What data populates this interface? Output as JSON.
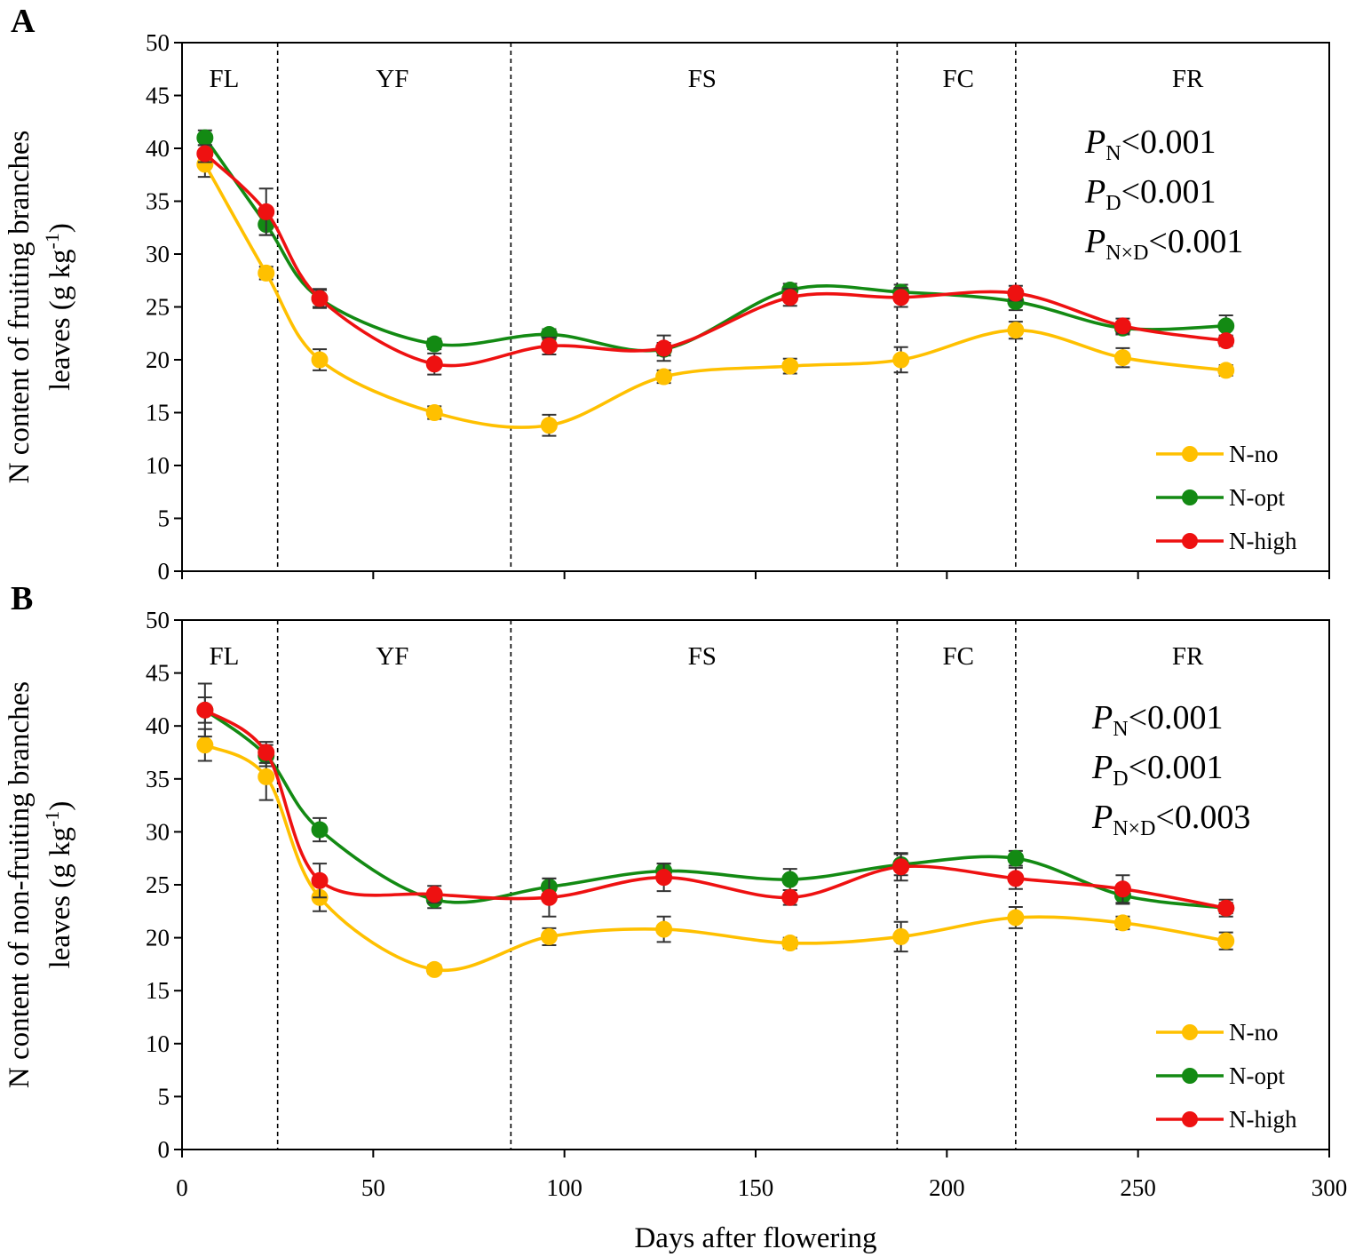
{
  "chart_data": [
    {
      "type": "line",
      "panel": "A",
      "ylabel_lines": [
        "N content of fruiting branches",
        "leaves (g kg",
        "-1",
        ")"
      ],
      "xlabel": "",
      "xlim": [
        0,
        300
      ],
      "ylim": [
        0,
        50
      ],
      "x_ticks": [
        "0",
        "50",
        "100",
        "150",
        "200",
        "250",
        "300"
      ],
      "y_ticks": [
        "0",
        "5",
        "10",
        "15",
        "20",
        "25",
        "30",
        "35",
        "40",
        "45",
        "50"
      ],
      "x": [
        6,
        22,
        36,
        66,
        96,
        126,
        159,
        188,
        218,
        246,
        273
      ],
      "series": [
        {
          "name": "N-no",
          "color": "#ffc000",
          "values": [
            38.5,
            28.2,
            20.0,
            15.0,
            13.8,
            18.4,
            19.4,
            20.0,
            22.8,
            20.2,
            19.0
          ],
          "errors": [
            1.2,
            0.6,
            1.0,
            0.6,
            1.0,
            0.6,
            0.7,
            1.2,
            0.8,
            0.9,
            0.5
          ]
        },
        {
          "name": "N-opt",
          "color": "#138a13",
          "values": [
            41.0,
            32.8,
            25.8,
            21.5,
            22.4,
            21.0,
            26.6,
            26.4,
            25.5,
            23.0,
            23.2
          ],
          "errors": [
            0.7,
            1.0,
            0.8,
            0.5,
            0.5,
            0.6,
            0.6,
            0.7,
            0.8,
            0.6,
            1.0
          ]
        },
        {
          "name": "N-high",
          "color": "#ee1111",
          "values": [
            39.5,
            34.0,
            25.8,
            19.6,
            21.3,
            21.1,
            25.9,
            25.9,
            26.3,
            23.2,
            21.8
          ],
          "errors": [
            0.8,
            2.2,
            0.9,
            1.0,
            0.8,
            1.2,
            0.8,
            0.9,
            0.7,
            0.7,
            0.5
          ]
        }
      ],
      "stage_boundaries": [
        25,
        86,
        187,
        218
      ],
      "stages": [
        {
          "label": "FL",
          "x": 11
        },
        {
          "label": "YF",
          "x": 55
        },
        {
          "label": "FS",
          "x": 136
        },
        {
          "label": "FC",
          "x": 203
        },
        {
          "label": "FR",
          "x": 263
        }
      ],
      "stats": [
        {
          "sub": "N",
          "text": "<0.001"
        },
        {
          "sub": "D",
          "text": "<0.001"
        },
        {
          "sub": "N×D",
          "text": "<0.001"
        }
      ]
    },
    {
      "type": "line",
      "panel": "B",
      "ylabel_lines": [
        "N content of non-fruiting branches",
        "leaves (g kg",
        "-1",
        ")"
      ],
      "xlabel": "Days after flowering",
      "xlim": [
        0,
        300
      ],
      "ylim": [
        0,
        50
      ],
      "x_ticks": [
        "0",
        "50",
        "100",
        "150",
        "200",
        "250",
        "300"
      ],
      "y_ticks": [
        "0",
        "5",
        "10",
        "15",
        "20",
        "25",
        "30",
        "35",
        "40",
        "45",
        "50"
      ],
      "x": [
        6,
        22,
        36,
        66,
        96,
        126,
        159,
        188,
        218,
        246,
        273
      ],
      "series": [
        {
          "name": "N-no",
          "color": "#ffc000",
          "values": [
            38.2,
            35.2,
            23.8,
            17.0,
            20.1,
            20.8,
            19.5,
            20.1,
            21.9,
            21.4,
            19.7
          ],
          "errors": [
            1.5,
            2.2,
            1.3,
            0.4,
            0.8,
            1.2,
            0.5,
            1.4,
            1.0,
            0.6,
            0.8
          ]
        },
        {
          "name": "N-opt",
          "color": "#138a13",
          "values": [
            41.5,
            37.2,
            30.2,
            23.6,
            24.8,
            26.3,
            25.5,
            26.9,
            27.5,
            24.0,
            22.8
          ],
          "errors": [
            1.2,
            1.0,
            1.1,
            0.8,
            0.8,
            0.7,
            1.0,
            1.0,
            0.7,
            0.8,
            0.8
          ]
        },
        {
          "name": "N-high",
          "color": "#ee1111",
          "values": [
            41.5,
            37.5,
            25.4,
            24.1,
            23.8,
            25.7,
            23.8,
            26.7,
            25.6,
            24.6,
            22.8
          ],
          "errors": [
            2.5,
            1.0,
            1.6,
            0.8,
            1.8,
            1.3,
            0.7,
            1.3,
            1.0,
            1.3,
            0.5
          ]
        }
      ],
      "stage_boundaries": [
        25,
        86,
        187,
        218
      ],
      "stages": [
        {
          "label": "FL",
          "x": 11
        },
        {
          "label": "YF",
          "x": 55
        },
        {
          "label": "FS",
          "x": 136
        },
        {
          "label": "FC",
          "x": 203
        },
        {
          "label": "FR",
          "x": 263
        }
      ],
      "stats": [
        {
          "sub": "N",
          "text": "<0.001"
        },
        {
          "sub": "D",
          "text": "<0.001"
        },
        {
          "sub": "N×D",
          "text": "<0.003"
        }
      ]
    }
  ],
  "legend_order": [
    "N-no",
    "N-opt",
    "N-high"
  ],
  "stat_symbol": "P"
}
